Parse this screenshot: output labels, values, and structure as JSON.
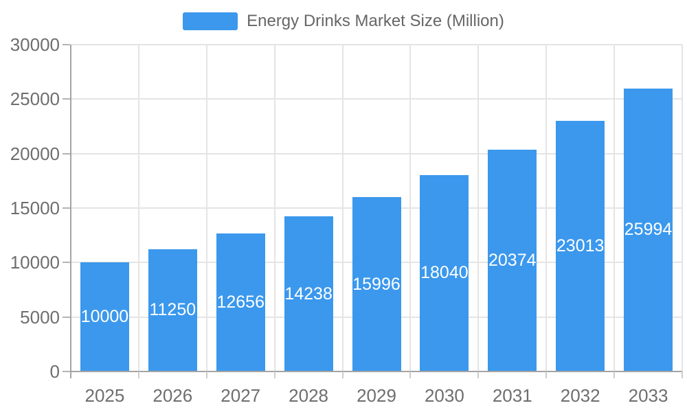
{
  "legend": {
    "label": "Energy Drinks Market Size (Million)"
  },
  "chart_data": {
    "type": "bar",
    "title": "Energy Drinks Market Size (Million)",
    "series_name": "Energy Drinks Market Size (Million)",
    "categories": [
      "2025",
      "2026",
      "2027",
      "2028",
      "2029",
      "2030",
      "2031",
      "2032",
      "2033"
    ],
    "values": [
      10000,
      11250,
      12656,
      14238,
      15996,
      18040,
      20374,
      23013,
      25994
    ],
    "xlabel": "",
    "ylabel": "",
    "ylim": [
      0,
      30000
    ],
    "y_ticks": [
      0,
      5000,
      10000,
      15000,
      20000,
      25000,
      30000
    ],
    "grid": true,
    "legend_position": "top-center",
    "value_label_position": "inside-center"
  },
  "colors": {
    "bar": "#3b98ed",
    "axis_line": "#a3a3a3",
    "grid_line": "#e4e4e4",
    "y_tick": "#b3b3b3",
    "x_tick": "#cccccc",
    "axis_label": "#6e6e6e",
    "legend_text": "#666666",
    "value_label": "#ffffff"
  }
}
